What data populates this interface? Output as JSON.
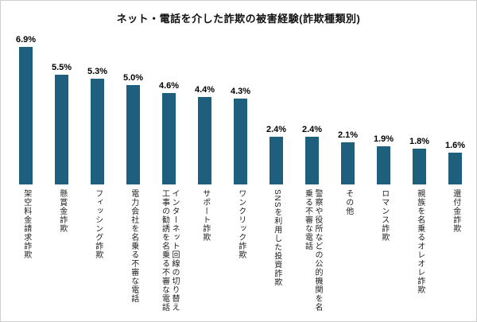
{
  "chart_data": {
    "type": "bar",
    "title": "ネット・電話を介した詐欺の被害経験(詐欺種類別)",
    "categories": [
      "架空料金請求詐欺",
      "懸賞金詐欺",
      "フィッシング詐欺",
      "電力会社を名乗る不審な電話",
      "インターネット回線の切り替え工事の勧誘を名乗る不審な電話",
      "サポート詐欺",
      "ワンクリック詐欺",
      "SNSを利用した投資詐欺",
      "警察や役所などの公的機関を名乗る不審な電話",
      "その他",
      "ロマンス詐欺",
      "親族を名乗るオレオレ詐欺",
      "還付金詐欺"
    ],
    "values": [
      6.9,
      5.5,
      5.3,
      5.0,
      4.6,
      4.4,
      4.3,
      2.4,
      2.4,
      2.1,
      1.9,
      1.8,
      1.6
    ],
    "value_labels": [
      "6.9%",
      "5.5%",
      "5.3%",
      "5.0%",
      "4.6%",
      "4.4%",
      "4.3%",
      "2.4%",
      "2.4%",
      "2.1%",
      "1.9%",
      "1.8%",
      "1.6%"
    ],
    "xlabel": "",
    "ylabel": "",
    "ylim": [
      0,
      7.5
    ],
    "grid": false,
    "legend": false,
    "bar_color": "#1e5f7d",
    "background_color": "#ffffff"
  }
}
